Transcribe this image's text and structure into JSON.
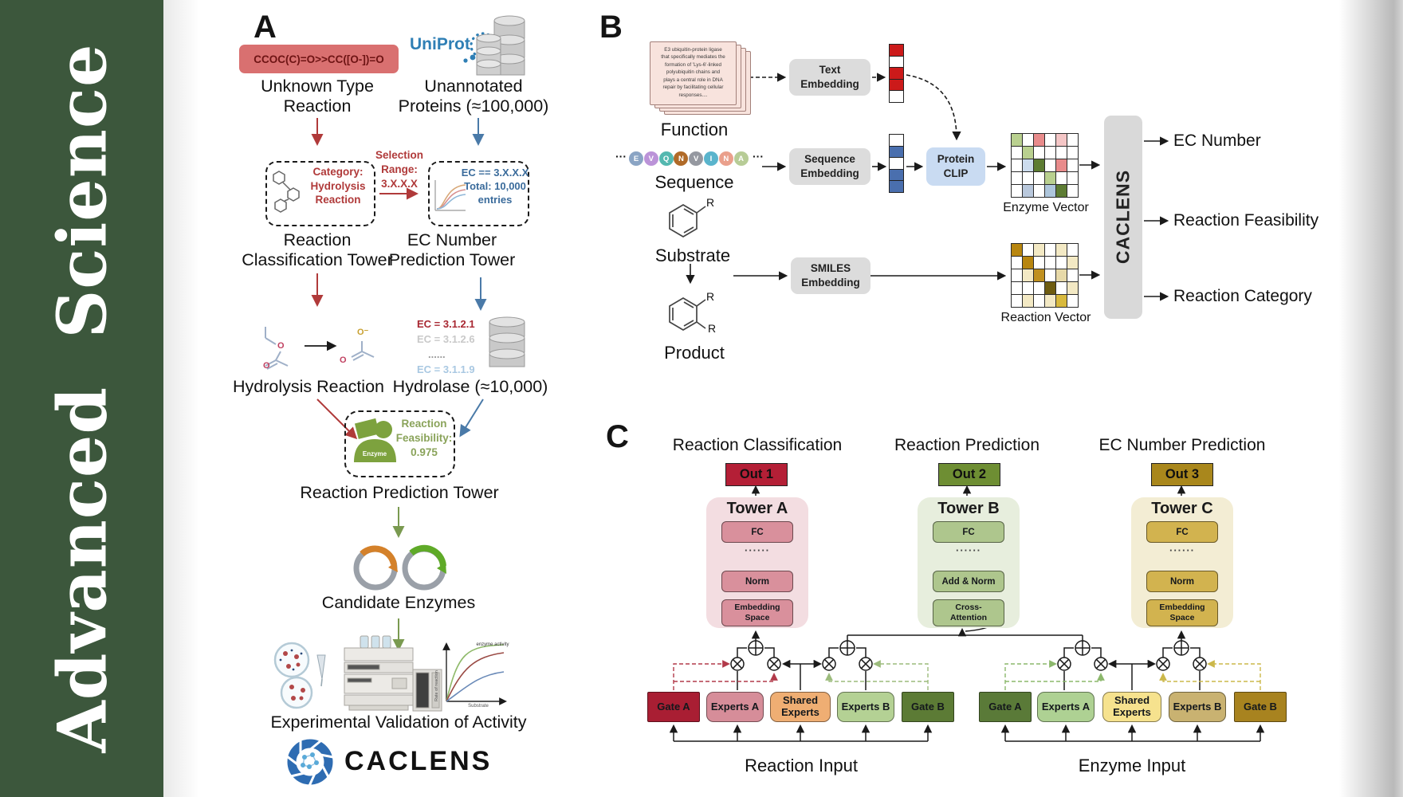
{
  "journal": {
    "name": "Advanced  Science",
    "sidebar_color": "#3c573c"
  },
  "panel_a": {
    "label": "A",
    "smiles": "CCOC(C)=O>>CC([O-])=O",
    "unknown_reaction": "Unknown Type\nReaction",
    "uniprot": "UniProt",
    "unannotated": "Unannotated\nProteins (≈100,000)",
    "category_box": "Category:\nHydrolysis\nReaction",
    "selection": "Selection\nRange:\n3.X.X.X",
    "ec_box": "EC == 3.X.X.X\nTotal: 10,000\nentries",
    "tower_classification": "Reaction\nClassification Tower",
    "tower_ec": "EC Number\nPrediction Tower",
    "ec_list": [
      {
        "text": "EC = 3.1.2.1",
        "color": "#a82832"
      },
      {
        "text": "EC = 3.1.2.6",
        "color": "#c9c9c9"
      },
      {
        "text": "......",
        "color": "#9a9a9a"
      },
      {
        "text": "EC = 3.1.1.9",
        "color": "#a9c8e2"
      }
    ],
    "hydrolysis_reaction": "Hydrolysis Reaction",
    "hydrolase": "Hydrolase (≈10,000)",
    "enzyme_badge": "Enzyme",
    "feasibility": "Reaction\nFeasibility:\n0.975",
    "tower_reaction_prediction": "Reaction Prediction Tower",
    "candidate_enzymes": "Candidate Enzymes",
    "activity_graph": {
      "ylabel": "Rate of reaction",
      "xlabel": "Substrate",
      "curve_label": "enzyme activity"
    },
    "validation": "Experimental Validation of Activity",
    "logo_text": "CACLENS"
  },
  "panel_b": {
    "label": "B",
    "function_card": "E3 ubiquitin-protein ligase\nthat specifically mediates the\nformation of 'Lys-6'-linked\npolyubiquitin chains and\nplays a central role in DNA\nrepair by facilitating cellular\nresponses....",
    "function_label": "Function",
    "ellipsis": "···",
    "residues": [
      {
        "letter": "E",
        "color": "#8aa4c4"
      },
      {
        "letter": "V",
        "color": "#bb93d8"
      },
      {
        "letter": "Q",
        "color": "#54b8b0"
      },
      {
        "letter": "N",
        "color": "#b06a28"
      },
      {
        "letter": "V",
        "color": "#9598a0"
      },
      {
        "letter": "I",
        "color": "#5ab4cc"
      },
      {
        "letter": "N",
        "color": "#eaa08c"
      },
      {
        "letter": "A",
        "color": "#b7cc96"
      }
    ],
    "sequence_label": "Sequence",
    "substrate_label": "Substrate",
    "product_label": "Product",
    "r_label": "R",
    "text_embedding": "Text\nEmbedding",
    "sequence_embedding": "Sequence\nEmbedding",
    "smiles_embedding": "SMILES\nEmbedding",
    "protein_clip": "Protein\nCLIP",
    "text_vector_cells": [
      "#cc1a1a",
      "#ffffff",
      "#cc1a1a",
      "#cc1a1a",
      "#ffffff"
    ],
    "sequence_vector_cells": [
      "#ffffff",
      "#4a6fae",
      "#ffffff",
      "#4a6fae",
      "#4a6fae"
    ],
    "enzyme_vector_grid": [
      [
        "#b9d08f",
        "#ffffff",
        "#e88b8b",
        "#ffffff",
        "#f4c6c6",
        "#ffffff"
      ],
      [
        "#ffffff",
        "#b9d08f",
        "#ffffff",
        "#ffffff",
        "#ffffff",
        "#ffffff"
      ],
      [
        "#ffffff",
        "#ccdcee",
        "#5d7c33",
        "#ffffff",
        "#e88b8b",
        "#ffffff"
      ],
      [
        "#ffffff",
        "#ffffff",
        "#ffffff",
        "#b9d08f",
        "#ffffff",
        "#ffffff"
      ],
      [
        "#ffffff",
        "#b9c8dc",
        "#ffffff",
        "#aec6dc",
        "#5d7c33",
        "#ffffff"
      ]
    ],
    "reaction_vector_grid": [
      [
        "#b8860f",
        "#ffffff",
        "#f3e9c4",
        "#ffffff",
        "#f3e9c4",
        "#ffffff"
      ],
      [
        "#ffffff",
        "#b8860f",
        "#ffffff",
        "#ffffff",
        "#ffffff",
        "#f3e9c4"
      ],
      [
        "#ffffff",
        "#f3e9c4",
        "#c09020",
        "#ffffff",
        "#e7d9a8",
        "#ffffff"
      ],
      [
        "#ffffff",
        "#ffffff",
        "#ffffff",
        "#6e5c10",
        "#ffffff",
        "#f3e9c4"
      ],
      [
        "#ffffff",
        "#f3e9c4",
        "#ffffff",
        "#f3e9c4",
        "#d8b93c",
        "#ffffff"
      ]
    ],
    "enzyme_vector_label": "Enzyme Vector",
    "reaction_vector_label": "Reaction Vector",
    "caclens_bar": "CACLENS",
    "outputs": [
      "EC Number",
      "Reaction Feasibility",
      "Reaction Category"
    ]
  },
  "panel_c": {
    "label": "C",
    "headers": [
      "Reaction Classification",
      "Reaction Prediction",
      "EC Number Prediction"
    ],
    "outs": [
      {
        "label": "Out 1",
        "color": "#b41f36"
      },
      {
        "label": "Out 2",
        "color": "#6e8e33"
      },
      {
        "label": "Out 3",
        "color": "#a9871c"
      }
    ],
    "towers": [
      {
        "title": "Tower A",
        "fc": "FC",
        "dots": "······",
        "mid": "Norm",
        "bottom": "Embedding\nSpace",
        "panel_color": "#f3dde1",
        "box_color": "#d9909c"
      },
      {
        "title": "Tower B",
        "fc": "FC",
        "dots": "······",
        "mid": "Add & Norm",
        "bottom": "Cross-\nAttention",
        "panel_color": "#e7eedd",
        "box_color": "#aec68d"
      },
      {
        "title": "Tower C",
        "fc": "FC",
        "dots": "······",
        "mid": "Norm",
        "bottom": "Embedding\nSpace",
        "panel_color": "#f3edd4",
        "box_color": "#d2b34f"
      }
    ],
    "groups": [
      {
        "input_label": "Reaction Input",
        "boxes": [
          {
            "label": "Gate A",
            "color": "#a91e33"
          },
          {
            "label": "Experts A",
            "color": "#d68d99"
          },
          {
            "label": "Shared\nExperts",
            "color": "#efae73"
          },
          {
            "label": "Experts B",
            "color": "#b4d194"
          },
          {
            "label": "Gate B",
            "color": "#5c7b35"
          }
        ]
      },
      {
        "input_label": "Enzyme Input",
        "boxes": [
          {
            "label": "Gate A",
            "color": "#5a7a38"
          },
          {
            "label": "Experts A",
            "color": "#aed193"
          },
          {
            "label": "Shared\nExperts",
            "color": "#f6e28e"
          },
          {
            "label": "Experts B",
            "color": "#c9b271"
          },
          {
            "label": "Gate B",
            "color": "#a8831f"
          }
        ]
      }
    ]
  }
}
